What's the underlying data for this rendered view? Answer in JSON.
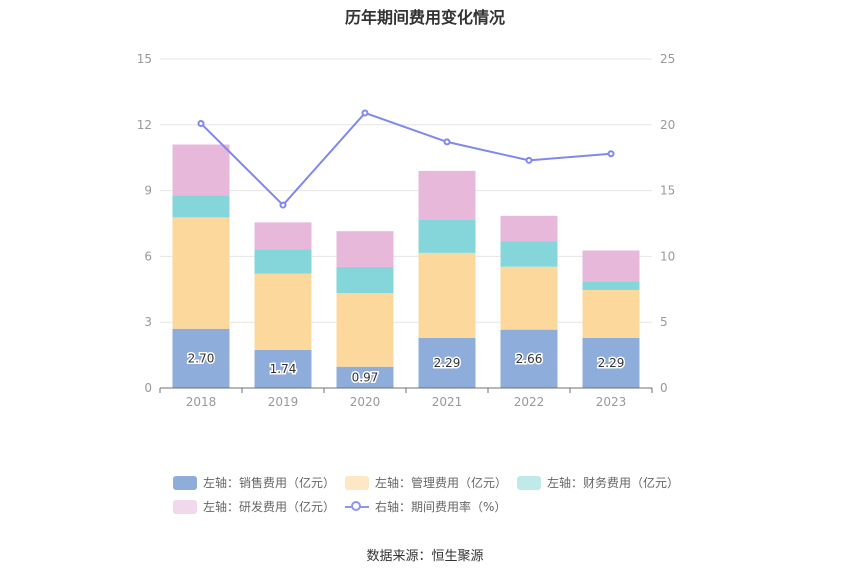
{
  "chart_data": {
    "type": "bar",
    "stacked": true,
    "title": "历年期间费用变化情况",
    "categories": [
      "2018",
      "2019",
      "2020",
      "2021",
      "2022",
      "2023"
    ],
    "y_left": {
      "ticks": [
        "0",
        "3",
        "6",
        "9",
        "12",
        "15"
      ],
      "ylim": [
        0,
        15
      ]
    },
    "y_right": {
      "ticks": [
        "0",
        "5",
        "10",
        "15",
        "20",
        "25"
      ],
      "ylim": [
        0,
        25
      ]
    },
    "grid": true,
    "series": [
      {
        "name": "左轴：销售费用（亿元）",
        "axis": "left",
        "color": "#8eaddb",
        "legend_color": "#8eaddb",
        "values": [
          2.7,
          1.74,
          0.97,
          2.29,
          2.66,
          2.29
        ],
        "labels": [
          "2.70",
          "1.74",
          "0.97",
          "2.29",
          "2.66",
          "2.29"
        ]
      },
      {
        "name": "左轴：管理费用（亿元）",
        "axis": "left",
        "color": "#fdd89c",
        "legend_color": "#fde7c4",
        "values": [
          5.08,
          3.48,
          3.35,
          3.87,
          2.87,
          2.18
        ]
      },
      {
        "name": "左轴：财务费用（亿元）",
        "axis": "left",
        "color": "#84d6da",
        "legend_color": "#c0e9ea",
        "values": [
          1.0,
          1.1,
          1.2,
          1.5,
          1.15,
          0.4
        ]
      },
      {
        "name": "左轴：研发费用（亿元）",
        "axis": "left",
        "color": "#e7b8da",
        "legend_color": "#f1d8ea",
        "values": [
          2.32,
          1.23,
          1.63,
          2.24,
          1.17,
          1.4
        ]
      },
      {
        "name": "右轴：期间费用率（%）",
        "axis": "right",
        "type": "line",
        "color": "#8088ef",
        "values": [
          20.1,
          13.9,
          20.9,
          18.7,
          17.3,
          17.8
        ]
      }
    ],
    "legend_position": "bottom"
  },
  "footer": {
    "source": "数据来源：恒生聚源"
  }
}
